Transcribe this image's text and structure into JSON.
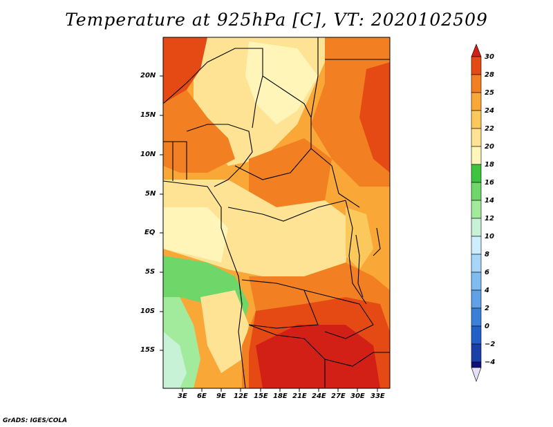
{
  "title": "Temperature at 925hPa [C], VT: 2020102509",
  "footer": "GrADS: IGES/COLA",
  "map": {
    "lat_labels": [
      "20N",
      "15N",
      "10N",
      "5N",
      "EQ",
      "5S",
      "10S",
      "15S"
    ],
    "lon_labels": [
      "3E",
      "6E",
      "9E",
      "12E",
      "15E",
      "18E",
      "21E",
      "24E",
      "27E",
      "30E",
      "33E"
    ],
    "palette": {
      "l_m4": "#0f0f7a",
      "l_m2": "#1a3fa8",
      "l_0": "#2060c8",
      "l_2": "#3a80d8",
      "l_4": "#5fa0e6",
      "l_6": "#7fbcf0",
      "l_8": "#a8d6f8",
      "l_10": "#cdeefc",
      "l_12": "#c8f2d6",
      "l_14": "#a3eb9c",
      "l_16": "#6fd76a",
      "l_18": "#3dc43f",
      "l_20": "#fff5b8",
      "l_22": "#fde393",
      "l_24": "#fbc85c",
      "l_25": "#f9a838",
      "l_28": "#f28022",
      "l_29": "#e54a15",
      "l_30": "#d32016"
    }
  },
  "colorbar": {
    "labels": [
      "30",
      "28",
      "25",
      "24",
      "22",
      "20",
      "18",
      "16",
      "14",
      "12",
      "10",
      "8",
      "6",
      "4",
      "2",
      "0",
      "−2",
      "−4"
    ]
  }
}
